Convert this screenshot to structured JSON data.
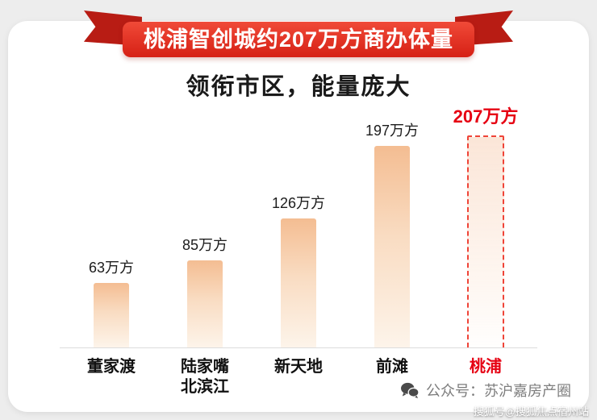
{
  "banner": {
    "title": "桃浦智创城约207万方商办体量"
  },
  "subtitle": "领衔市区，能量庞大",
  "chart_data": {
    "type": "bar",
    "title": "桃浦智创城约207万方商办体量",
    "subtitle": "领衔市区，能量庞大",
    "categories": [
      "董家渡",
      "陆家嘴\n北滨江",
      "新天地",
      "前滩",
      "桃浦"
    ],
    "values": [
      63,
      85,
      126,
      197,
      207
    ],
    "value_labels": [
      "63万方",
      "85万方",
      "126万方",
      "197万方",
      "207万方"
    ],
    "unit": "万方",
    "highlight_index": 4,
    "xlabel": "",
    "ylabel": "",
    "ylim": [
      0,
      207
    ],
    "grid": "off",
    "legend": "none"
  },
  "footer": {
    "account_label": "公众号：苏沪嘉房产圈"
  },
  "watermark": "搜狐号@搜狐焦点宿州站",
  "colors": {
    "banner_red": "#d62015",
    "ribbon_fold_red": "#b81c14",
    "highlight_red": "#e60012",
    "bar_gradient_top": "#f4bd92",
    "bar_gradient_bottom": "#fdf4ea",
    "baseline_gray": "#dcdcdc",
    "footer_gray": "#7d7d7d"
  }
}
